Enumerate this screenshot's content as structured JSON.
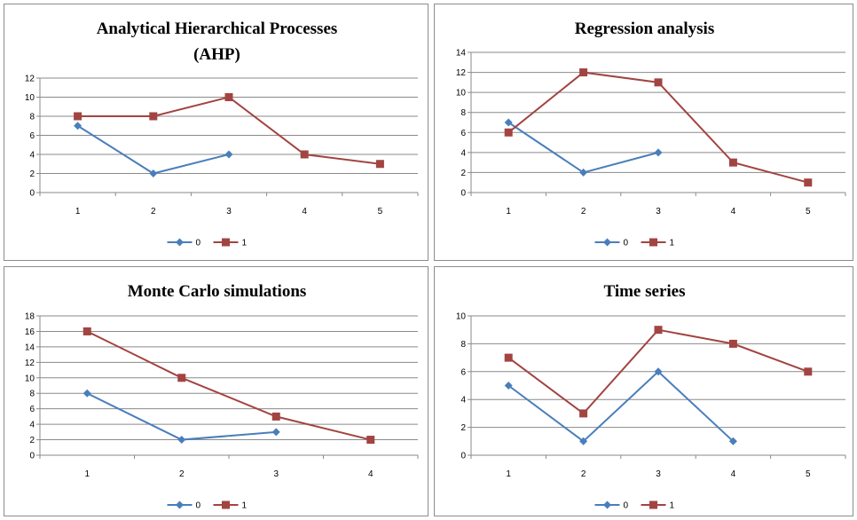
{
  "colors": {
    "series_0": "#4a7ebb",
    "series_1": "#a24441"
  },
  "chart_data": [
    {
      "type": "line",
      "title_lines": [
        "Analytical Hierarchical Processes",
        "(AHP)"
      ],
      "categories": [
        "1",
        "2",
        "3",
        "4",
        "5"
      ],
      "series": [
        {
          "name": "0",
          "values": [
            7,
            2,
            4,
            null,
            null
          ]
        },
        {
          "name": "1",
          "values": [
            8,
            8,
            10,
            4,
            3
          ]
        }
      ],
      "ylim": [
        0,
        12
      ],
      "ystep": 2,
      "grid": true,
      "legend": "bottom"
    },
    {
      "type": "line",
      "title_lines": [
        "Regression analysis"
      ],
      "categories": [
        "1",
        "2",
        "3",
        "4",
        "5"
      ],
      "series": [
        {
          "name": "0",
          "values": [
            7,
            2,
            4,
            null,
            null
          ]
        },
        {
          "name": "1",
          "values": [
            6,
            12,
            11,
            3,
            1
          ]
        }
      ],
      "ylim": [
        0,
        14
      ],
      "ystep": 2,
      "grid": true,
      "legend": "bottom"
    },
    {
      "type": "line",
      "title_lines": [
        "Monte Carlo simulations"
      ],
      "categories": [
        "1",
        "2",
        "3",
        "4"
      ],
      "series": [
        {
          "name": "0",
          "values": [
            8,
            2,
            3,
            null
          ]
        },
        {
          "name": "1",
          "values": [
            16,
            10,
            5,
            2
          ]
        }
      ],
      "ylim": [
        0,
        18
      ],
      "ystep": 2,
      "grid": true,
      "legend": "bottom"
    },
    {
      "type": "line",
      "title_lines": [
        "Time series"
      ],
      "categories": [
        "1",
        "2",
        "3",
        "4",
        "5"
      ],
      "series": [
        {
          "name": "0",
          "values": [
            5,
            1,
            6,
            1,
            null
          ]
        },
        {
          "name": "1",
          "values": [
            7,
            3,
            9,
            8,
            6
          ]
        }
      ],
      "ylim": [
        0,
        10
      ],
      "ystep": 2,
      "grid": true,
      "legend": "bottom"
    }
  ]
}
